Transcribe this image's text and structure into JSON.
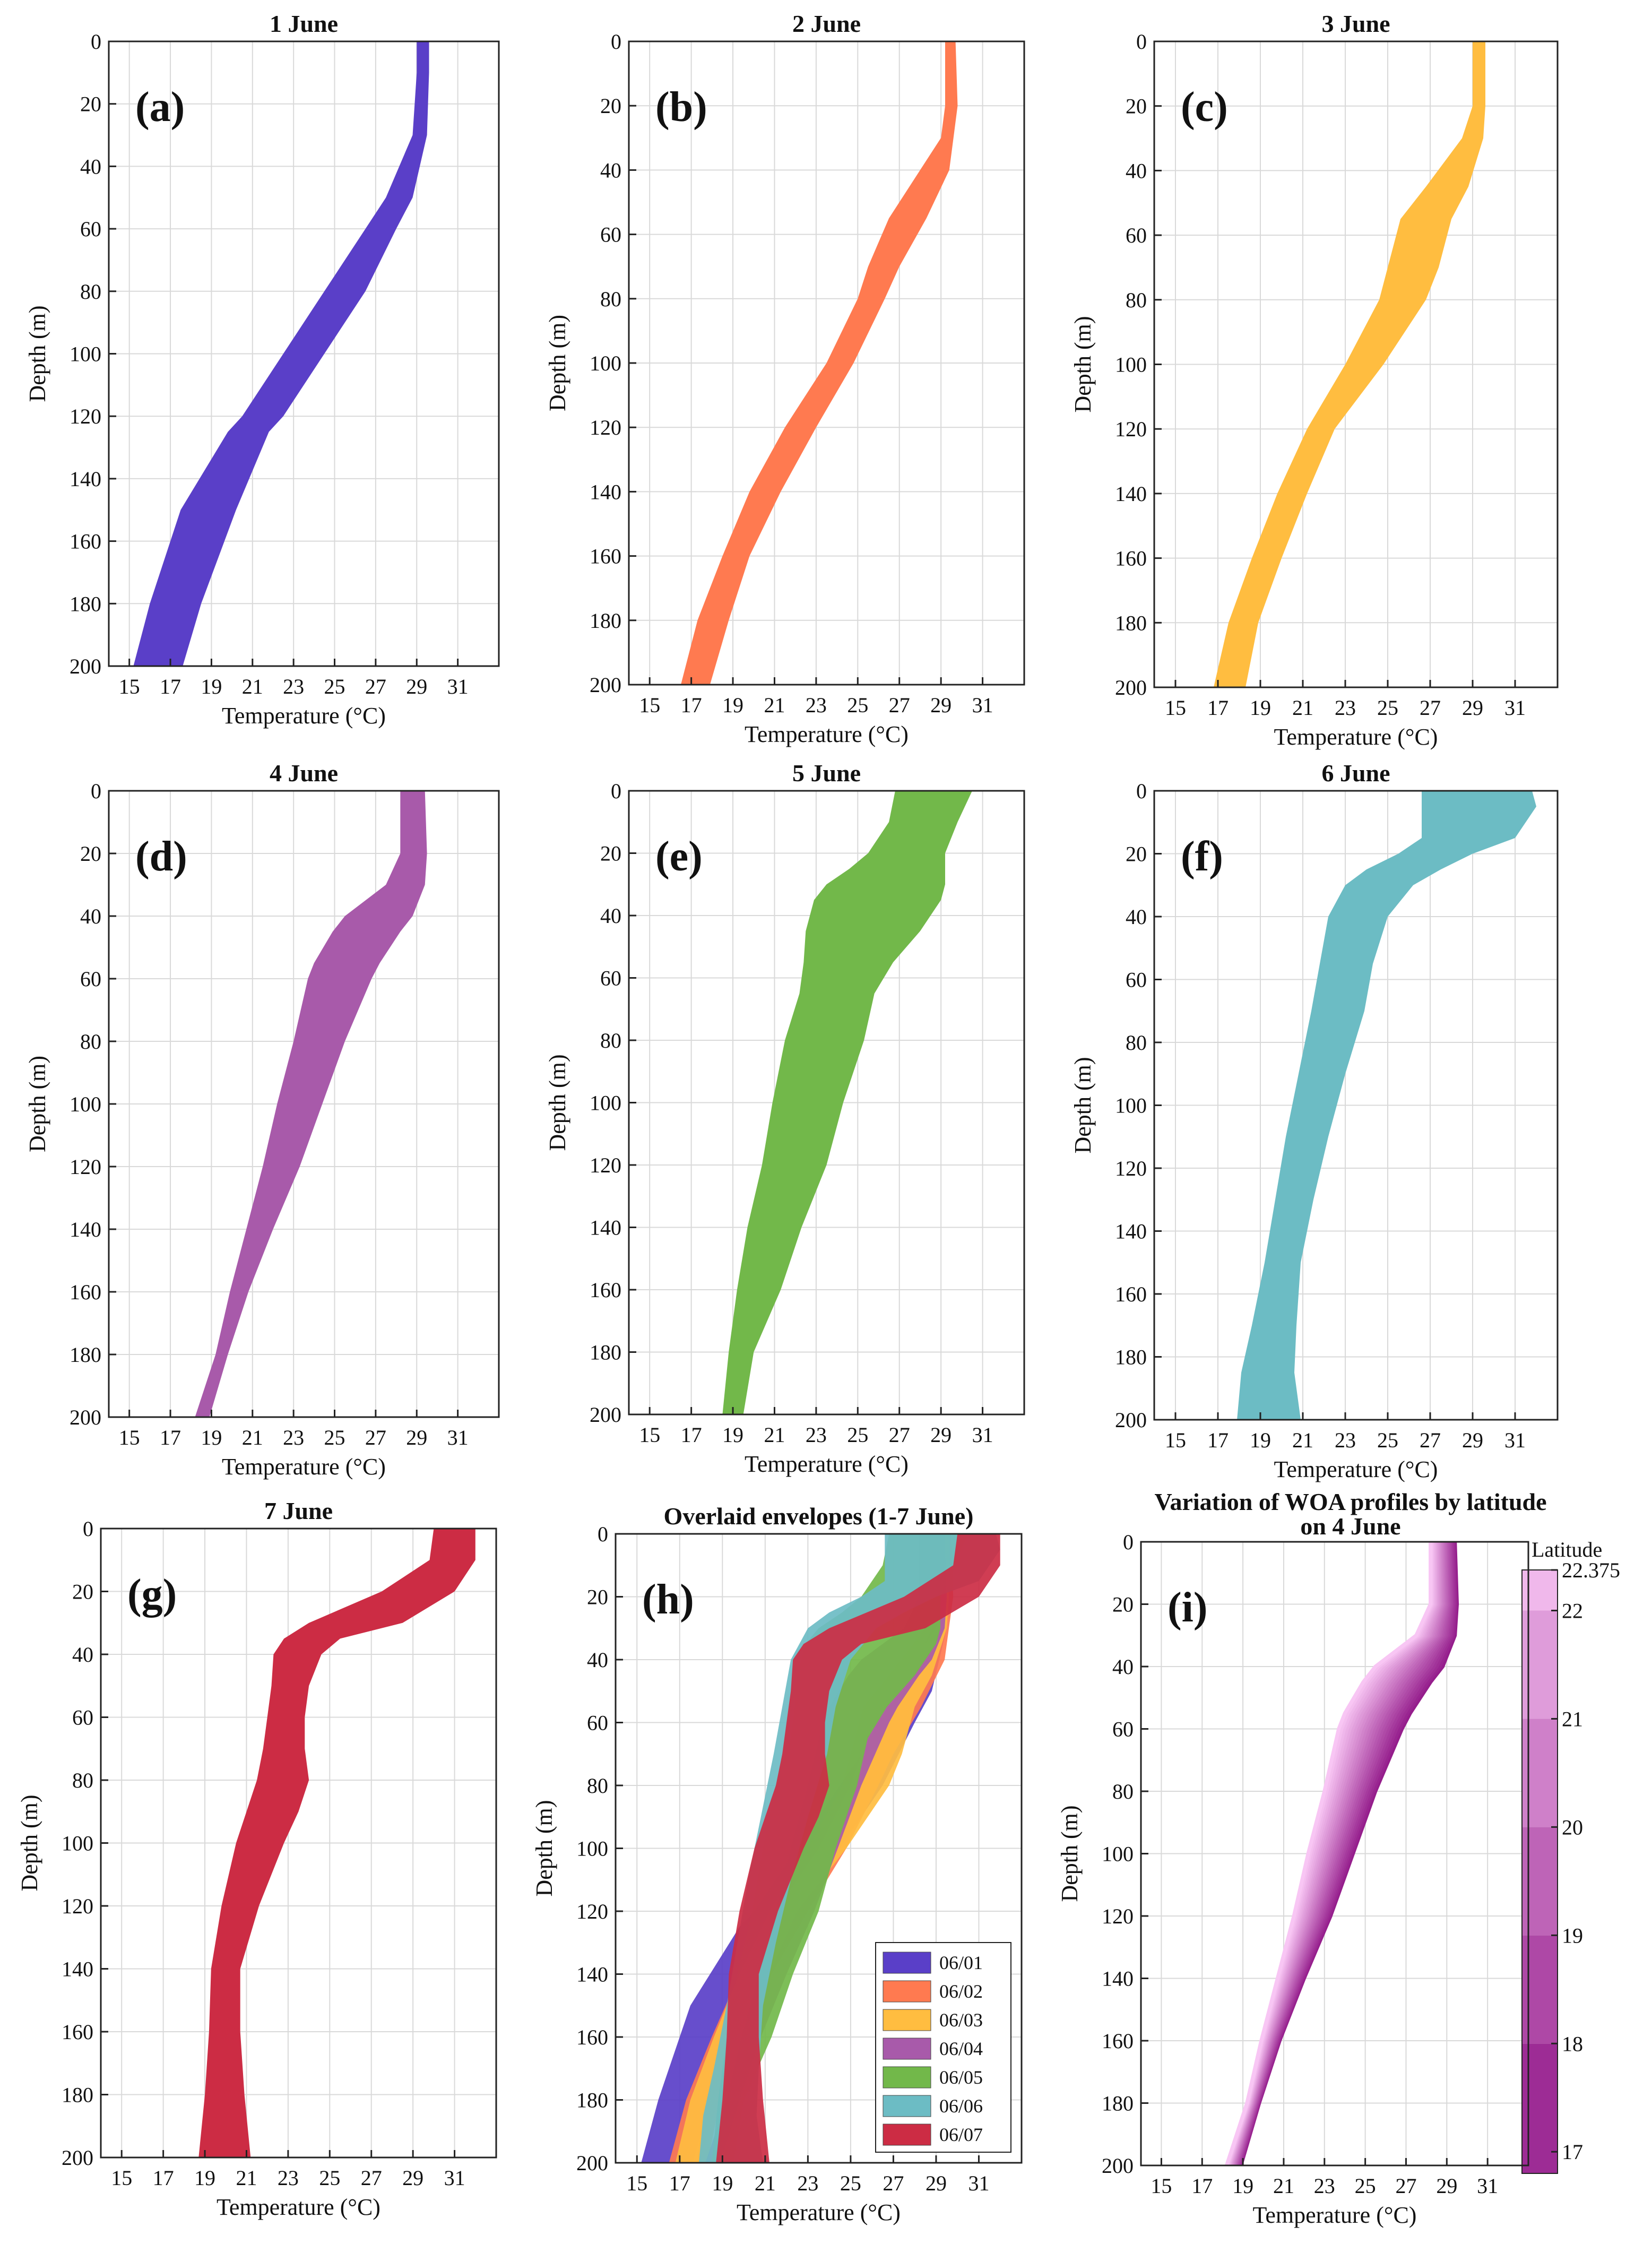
{
  "figure": {
    "x_ticks": [
      15,
      17,
      19,
      21,
      23,
      25,
      27,
      29,
      31
    ],
    "y_ticks": [
      0,
      20,
      40,
      60,
      80,
      100,
      120,
      140,
      160,
      180,
      200
    ]
  },
  "chart_data": [
    {
      "id": "a",
      "panel_label": "(a)",
      "title": "1 June",
      "type": "area",
      "color": "#5a3fc8",
      "xlabel": "Temperature (°C)",
      "ylabel": "Depth (m)",
      "xlim": [
        14,
        33
      ],
      "ylim": [
        0,
        200
      ],
      "depth": [
        0,
        10,
        30,
        50,
        60,
        80,
        100,
        120,
        125,
        150,
        180,
        200
      ],
      "t_min": [
        29.0,
        29.0,
        28.8,
        27.5,
        26.5,
        24.5,
        22.5,
        20.5,
        19.8,
        17.5,
        16.0,
        15.2
      ],
      "t_max": [
        29.6,
        29.6,
        29.5,
        28.8,
        28.0,
        26.5,
        24.5,
        22.5,
        21.8,
        20.2,
        18.5,
        17.6
      ]
    },
    {
      "id": "b",
      "panel_label": "(b)",
      "title": "2 June",
      "type": "area",
      "color": "#ff7a50",
      "xlabel": "Temperature (°C)",
      "ylabel": "Depth (m)",
      "xlim": [
        14,
        33
      ],
      "ylim": [
        0,
        200
      ],
      "depth": [
        0,
        20,
        30,
        40,
        55,
        70,
        80,
        100,
        120,
        140,
        160,
        180,
        200
      ],
      "t_min": [
        29.2,
        29.2,
        29.0,
        28.0,
        26.5,
        25.5,
        25.0,
        23.5,
        21.5,
        19.8,
        18.5,
        17.3,
        16.5
      ],
      "t_max": [
        29.7,
        29.8,
        29.6,
        29.4,
        28.3,
        27.0,
        26.3,
        24.8,
        23.0,
        21.3,
        19.8,
        18.8,
        17.9
      ]
    },
    {
      "id": "c",
      "panel_label": "(c)",
      "title": "3 June",
      "type": "area",
      "color": "#ffbd40",
      "xlabel": "Temperature (°C)",
      "ylabel": "Depth (m)",
      "xlim": [
        14,
        33
      ],
      "ylim": [
        0,
        200
      ],
      "depth": [
        0,
        20,
        30,
        45,
        55,
        70,
        80,
        100,
        120,
        140,
        160,
        180,
        200
      ],
      "t_min": [
        29.0,
        29.0,
        28.5,
        26.8,
        25.6,
        25.0,
        24.6,
        23.0,
        21.2,
        19.8,
        18.6,
        17.5,
        16.8
      ],
      "t_max": [
        29.6,
        29.6,
        29.5,
        28.8,
        28.0,
        27.4,
        26.8,
        24.8,
        22.5,
        21.2,
        20.0,
        18.9,
        18.3
      ]
    },
    {
      "id": "d",
      "panel_label": "(d)",
      "title": "4 June",
      "type": "area",
      "color": "#a85aaa",
      "xlabel": "Temperature (°C)",
      "ylabel": "Depth (m)",
      "xlim": [
        14,
        33
      ],
      "ylim": [
        0,
        200
      ],
      "depth": [
        0,
        20,
        30,
        40,
        45,
        55,
        60,
        80,
        100,
        120,
        140,
        160,
        180,
        200
      ],
      "t_min": [
        28.2,
        28.2,
        27.5,
        25.5,
        24.9,
        24.0,
        23.7,
        23.0,
        22.2,
        21.5,
        20.7,
        19.9,
        19.2,
        18.2
      ],
      "t_max": [
        29.4,
        29.5,
        29.4,
        28.8,
        28.2,
        27.2,
        26.8,
        25.5,
        24.4,
        23.3,
        22.0,
        20.8,
        19.8,
        18.9
      ]
    },
    {
      "id": "e",
      "panel_label": "(e)",
      "title": "5 June",
      "type": "area",
      "color": "#72b84a",
      "xlabel": "Temperature (°C)",
      "ylabel": "Depth (m)",
      "xlim": [
        14,
        33
      ],
      "ylim": [
        0,
        200
      ],
      "depth": [
        0,
        10,
        20,
        25,
        30,
        35,
        45,
        55,
        65,
        80,
        100,
        120,
        140,
        160,
        180,
        200
      ],
      "t_min": [
        26.8,
        26.5,
        25.5,
        24.6,
        23.5,
        22.9,
        22.5,
        22.4,
        22.2,
        21.5,
        20.9,
        20.4,
        19.7,
        19.2,
        18.8,
        18.5
      ],
      "t_max": [
        30.5,
        29.8,
        29.2,
        29.2,
        29.2,
        29.0,
        28.0,
        26.7,
        25.8,
        25.3,
        24.3,
        23.5,
        22.3,
        21.3,
        20.0,
        19.5
      ]
    },
    {
      "id": "f",
      "panel_label": "(f)",
      "title": "6 June",
      "type": "area",
      "color": "#6cbcc4",
      "xlabel": "Temperature (°C)",
      "ylabel": "Depth (m)",
      "xlim": [
        14,
        33
      ],
      "ylim": [
        0,
        200
      ],
      "depth": [
        0,
        5,
        15,
        20,
        25,
        30,
        40,
        55,
        70,
        90,
        110,
        130,
        150,
        170,
        185,
        200
      ],
      "t_min": [
        26.6,
        26.6,
        26.6,
        25.5,
        24.0,
        23.0,
        22.2,
        21.8,
        21.4,
        20.8,
        20.2,
        19.7,
        19.2,
        18.6,
        18.1,
        17.9
      ],
      "t_max": [
        31.8,
        32.0,
        31.0,
        29.0,
        27.5,
        26.2,
        25.0,
        24.3,
        23.9,
        23.0,
        22.2,
        21.5,
        20.9,
        20.7,
        20.6,
        20.9
      ]
    },
    {
      "id": "g",
      "panel_label": "(g)",
      "title": "7 June",
      "type": "area",
      "color": "#cc2c44",
      "xlabel": "Temperature (°C)",
      "ylabel": "Depth (m)",
      "xlim": [
        14,
        33
      ],
      "ylim": [
        0,
        200
      ],
      "depth": [
        0,
        10,
        20,
        30,
        35,
        40,
        50,
        60,
        70,
        80,
        90,
        100,
        120,
        140,
        160,
        180,
        200
      ],
      "t_min": [
        30.0,
        29.8,
        27.5,
        24.0,
        22.8,
        22.3,
        22.2,
        22.0,
        21.8,
        21.5,
        21.0,
        20.5,
        19.8,
        19.3,
        19.2,
        19.0,
        18.7
      ],
      "t_max": [
        32.0,
        32.0,
        31.0,
        28.5,
        25.5,
        24.6,
        24.0,
        23.8,
        23.8,
        24.0,
        23.5,
        22.8,
        21.6,
        20.7,
        20.7,
        20.9,
        21.2
      ]
    },
    {
      "id": "h",
      "panel_label": "(h)",
      "title": "Overlaid envelopes (1-7 June)",
      "type": "area",
      "xlabel": "Temperature (°C)",
      "ylabel": "Depth (m)",
      "xlim": [
        14,
        33
      ],
      "ylim": [
        0,
        200
      ],
      "legend": [
        "06/01",
        "06/02",
        "06/03",
        "06/04",
        "06/05",
        "06/06",
        "06/07"
      ],
      "legend_position": "bottom-right",
      "overlay_of": [
        "a",
        "b",
        "c",
        "d",
        "e",
        "f",
        "g"
      ]
    },
    {
      "id": "i",
      "panel_label": "(i)",
      "title": "Variation of WOA profiles by latitude",
      "title_line2": "on 4 June",
      "type": "line",
      "xlabel": "Temperature (°C)",
      "ylabel": "Depth (m)",
      "xlim": [
        14,
        33
      ],
      "ylim": [
        0,
        200
      ],
      "depth": [
        0,
        20,
        30,
        40,
        45,
        55,
        60,
        80,
        100,
        120,
        140,
        160,
        180,
        200
      ],
      "profile_low_lat": [
        29.4,
        29.5,
        29.4,
        28.8,
        28.2,
        27.2,
        26.8,
        25.5,
        24.4,
        23.3,
        22.0,
        20.8,
        19.8,
        18.9
      ],
      "profile_high_lat": [
        28.2,
        28.2,
        27.5,
        25.5,
        24.9,
        24.0,
        23.7,
        23.0,
        22.2,
        21.5,
        20.7,
        19.9,
        19.2,
        18.2
      ],
      "latitudes": [
        17,
        18,
        19,
        20,
        21,
        22,
        22.375
      ],
      "colorbar": {
        "label": "Latitude",
        "ticks": [
          "22.375",
          "22",
          "21",
          "20",
          "19",
          "18",
          "17"
        ],
        "min": 16.8,
        "max": 22.375
      }
    }
  ]
}
